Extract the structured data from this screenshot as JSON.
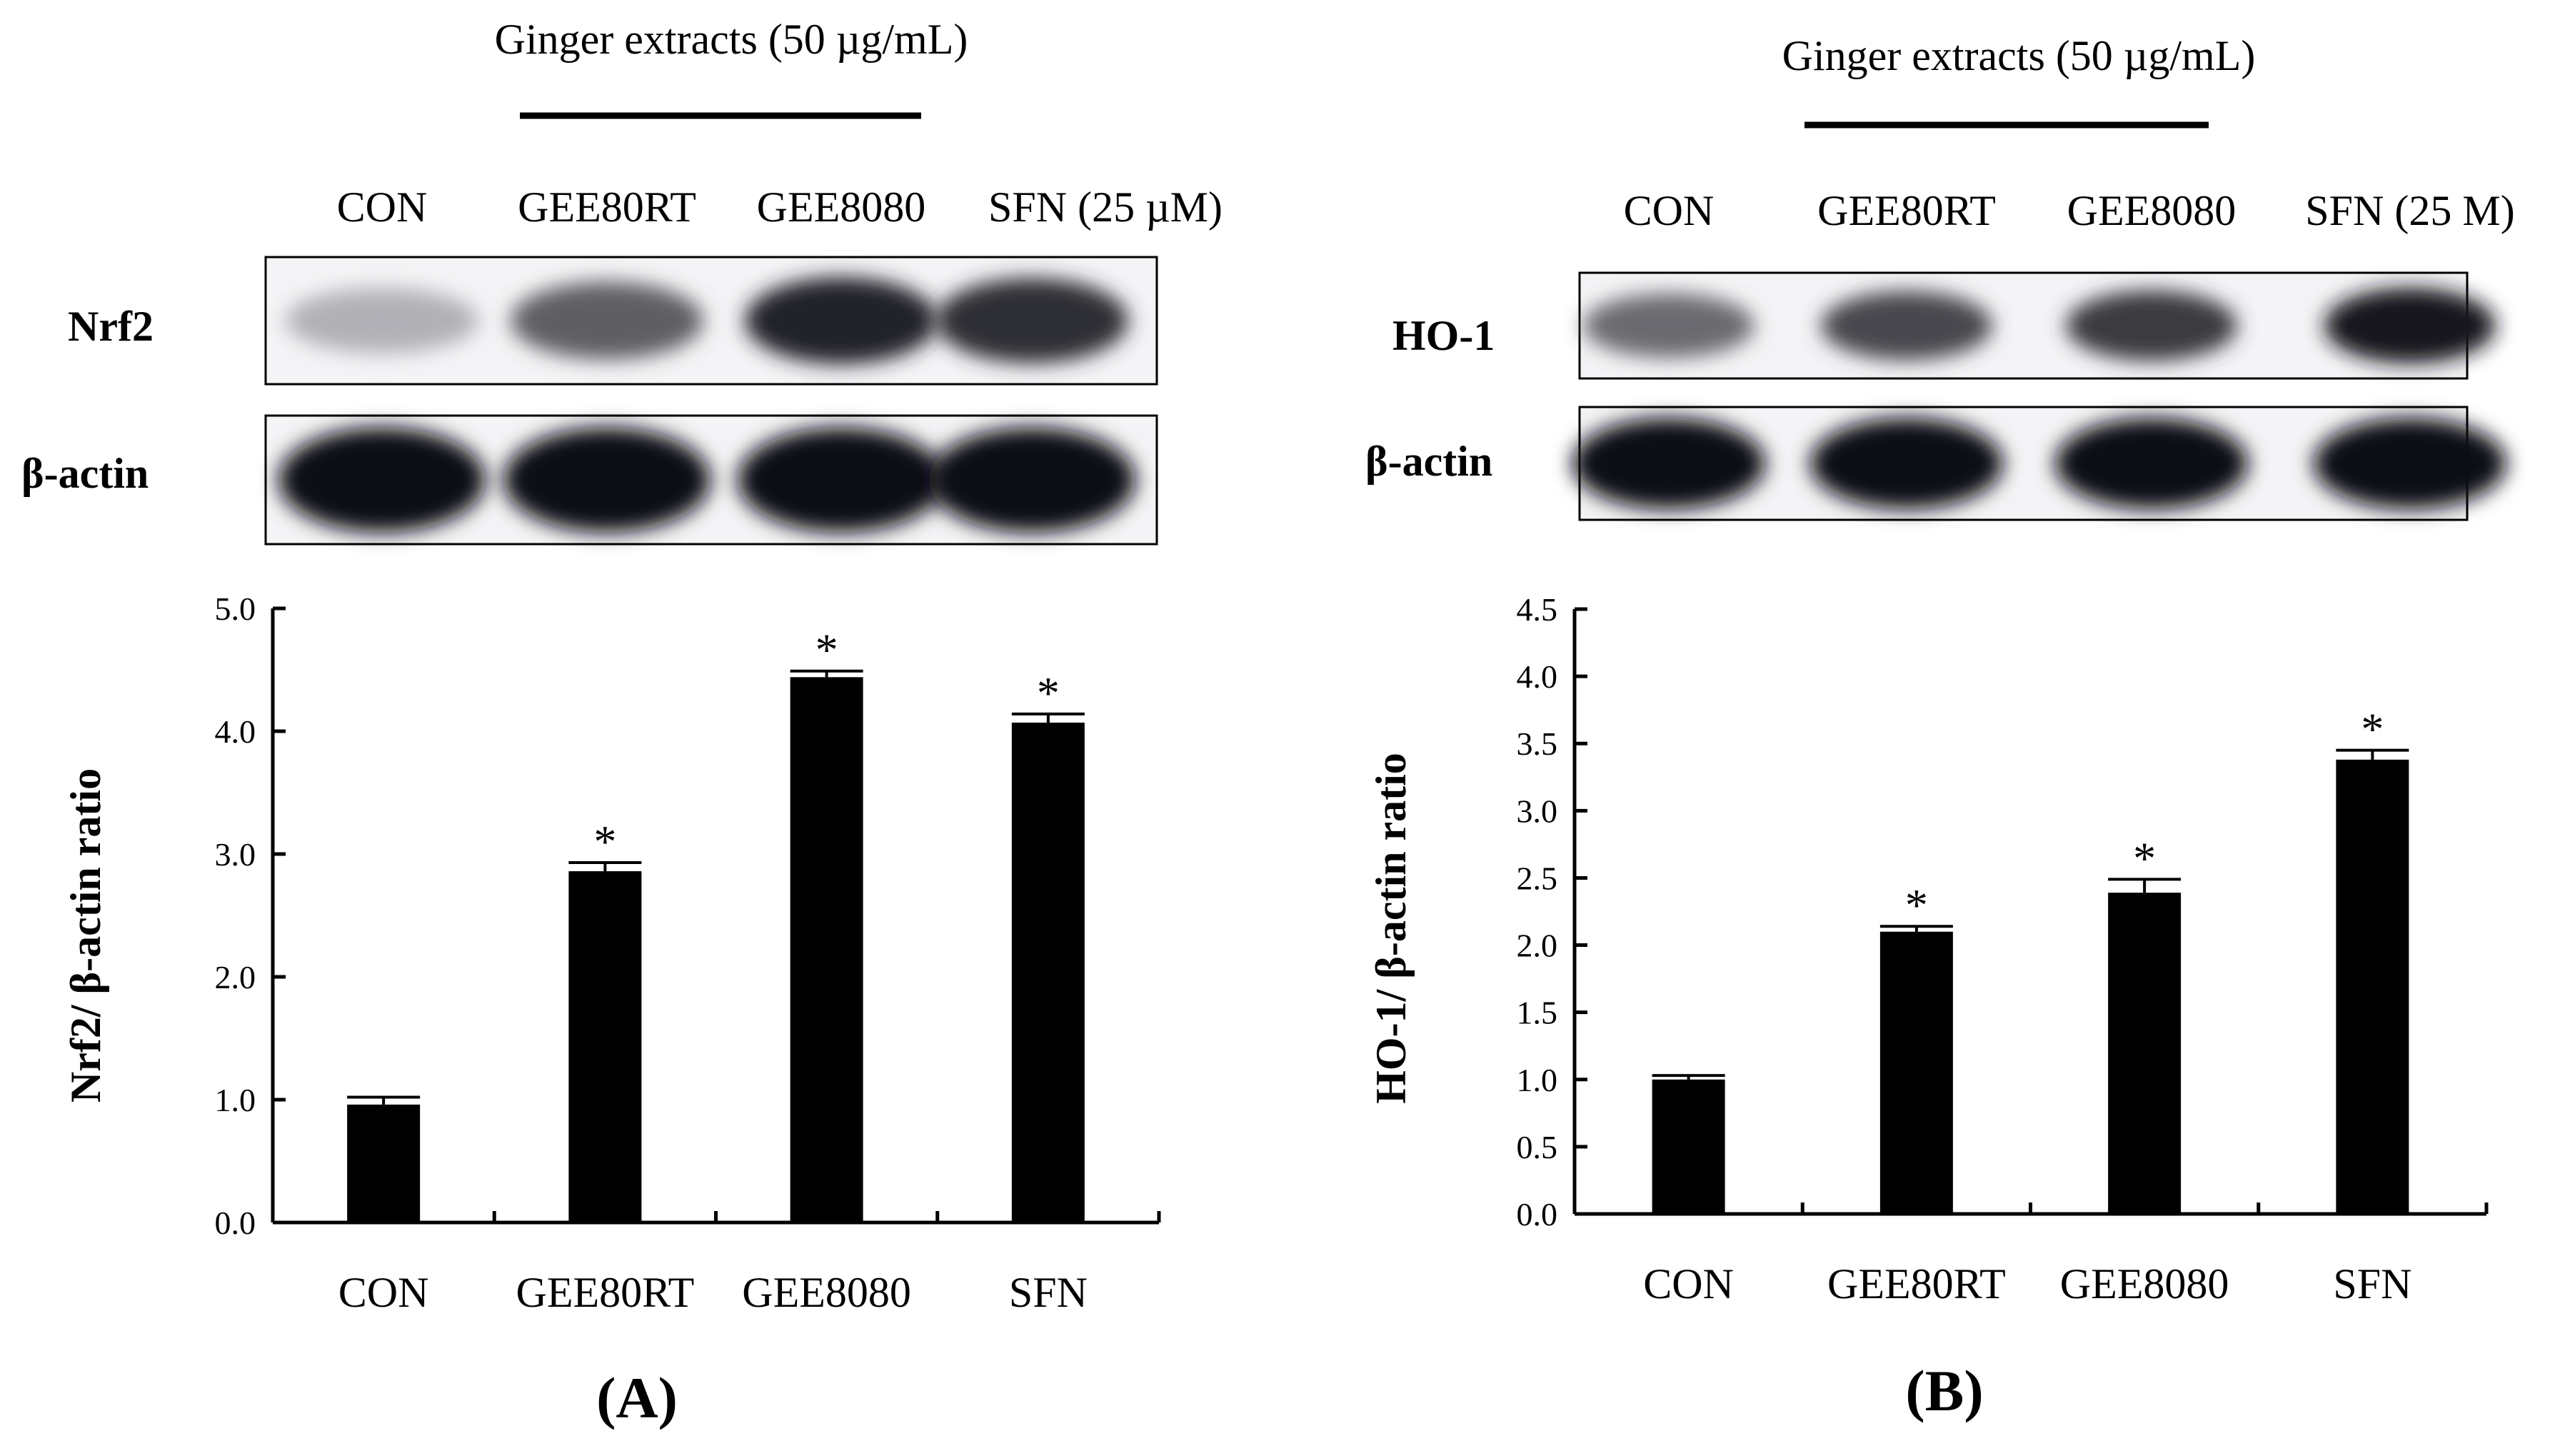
{
  "panels": [
    {
      "header": "Ginger extracts (50 µg/mL)",
      "lanes": [
        "CON",
        "GEE80RT",
        "GEE8080",
        "SFN (25 µM)"
      ],
      "blot_labels": [
        "Nrf2",
        "β-actin"
      ],
      "panel_label": "(A)",
      "band_intensity": {
        "target": [
          0.25,
          0.6,
          0.85,
          0.8
        ],
        "actin": [
          0.95,
          0.95,
          0.95,
          0.95
        ]
      }
    },
    {
      "header": "Ginger extracts (50 µg/mL)",
      "lanes": [
        "CON",
        "GEE80RT",
        "GEE8080",
        "SFN (25 M)"
      ],
      "blot_labels": [
        "HO-1",
        "β-actin"
      ],
      "panel_label": "(B)",
      "band_intensity": {
        "target": [
          0.55,
          0.7,
          0.75,
          0.9
        ],
        "actin": [
          0.95,
          0.95,
          0.95,
          0.95
        ]
      }
    }
  ],
  "chart_data": [
    {
      "type": "bar",
      "categories": [
        "CON",
        "GEE80RT",
        "GEE8080",
        "SFN"
      ],
      "series": [
        {
          "values": [
            0.96,
            2.86,
            4.44,
            4.07
          ],
          "errors": [
            0.06,
            0.07,
            0.05,
            0.07
          ],
          "significance": [
            "",
            "*",
            "*",
            "*"
          ]
        }
      ],
      "ylabel": "Nrf2/ β-actin ratio",
      "ylim": [
        0,
        5
      ],
      "yticks": [
        0,
        1,
        2,
        3,
        4,
        5
      ],
      "ytick_labels": [
        "0.0",
        "1.0",
        "2.0",
        "3.0",
        "4.0",
        "5.0"
      ],
      "bar_color": "#000000"
    },
    {
      "type": "bar",
      "categories": [
        "CON",
        "GEE80RT",
        "GEE8080",
        "SFN"
      ],
      "series": [
        {
          "values": [
            1.0,
            2.1,
            2.39,
            3.38
          ],
          "errors": [
            0.03,
            0.04,
            0.1,
            0.07
          ],
          "significance": [
            "",
            "*",
            "*",
            "*"
          ]
        }
      ],
      "ylabel": "HO-1/ β-actin ratio",
      "ylim": [
        0,
        4.5
      ],
      "yticks": [
        0,
        0.5,
        1,
        1.5,
        2,
        2.5,
        3,
        3.5,
        4,
        4.5
      ],
      "ytick_labels": [
        "0.0",
        "0.5",
        "1.0",
        "1.5",
        "2.0",
        "2.5",
        "3.0",
        "3.5",
        "4.0",
        "4.5"
      ],
      "bar_color": "#000000"
    }
  ]
}
